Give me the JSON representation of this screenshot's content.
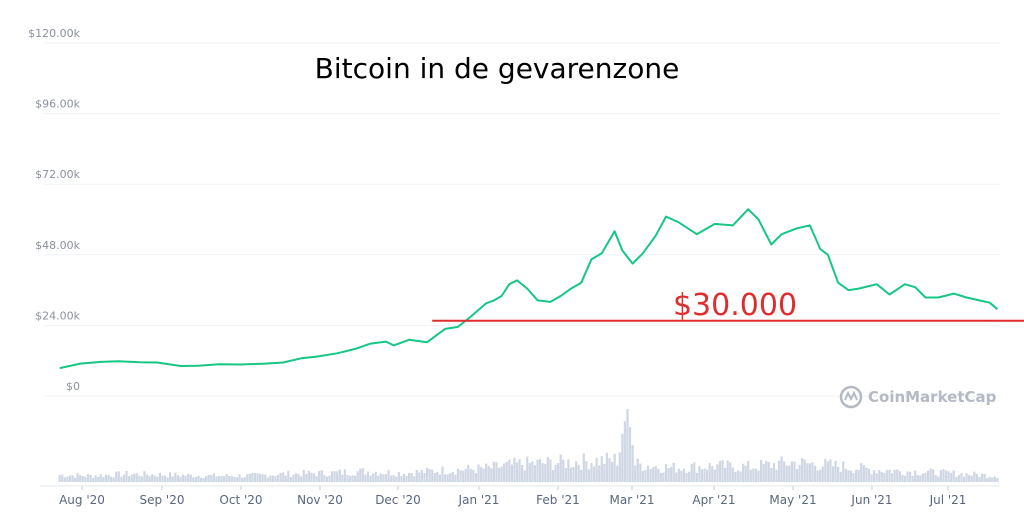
{
  "chart_data": {
    "type": "line",
    "title": "Bitcoin in de gevarenzone",
    "xlabel": "",
    "ylabel": "",
    "ylim": [
      0,
      120000
    ],
    "y_ticks": [
      {
        "value": 0,
        "label": "$0"
      },
      {
        "value": 24000,
        "label": "$24.00k"
      },
      {
        "value": 48000,
        "label": "$48.00k"
      },
      {
        "value": 72000,
        "label": "$72.00k"
      },
      {
        "value": 96000,
        "label": "$96.00k"
      },
      {
        "value": 120000,
        "label": "$120.00k"
      }
    ],
    "x_ticks": [
      "Aug '20",
      "Sep '20",
      "Oct '20",
      "Nov '20",
      "Dec '20",
      "Jan '21",
      "Feb '21",
      "Mar '21",
      "Apr '21",
      "May '21",
      "Jun '21",
      "Jul '21"
    ],
    "grid": true,
    "series": [
      {
        "color": "#16c784",
        "x": [
          "2020-07-20",
          "2020-07-28",
          "2020-08-05",
          "2020-08-12",
          "2020-08-20",
          "2020-08-27",
          "2020-09-05",
          "2020-09-12",
          "2020-09-20",
          "2020-09-28",
          "2020-10-08",
          "2020-10-15",
          "2020-10-22",
          "2020-10-28",
          "2020-11-05",
          "2020-11-12",
          "2020-11-18",
          "2020-11-24",
          "2020-11-27",
          "2020-12-03",
          "2020-12-10",
          "2020-12-17",
          "2020-12-22",
          "2020-12-27",
          "2021-01-02",
          "2021-01-05",
          "2021-01-08",
          "2021-01-11",
          "2021-01-14",
          "2021-01-18",
          "2021-01-22",
          "2021-01-27",
          "2021-01-31",
          "2021-02-04",
          "2021-02-08",
          "2021-02-12",
          "2021-02-16",
          "2021-02-21",
          "2021-02-24",
          "2021-02-28",
          "2021-03-04",
          "2021-03-09",
          "2021-03-13",
          "2021-03-18",
          "2021-03-25",
          "2021-04-01",
          "2021-04-08",
          "2021-04-14",
          "2021-04-18",
          "2021-04-23",
          "2021-04-27",
          "2021-05-03",
          "2021-05-08",
          "2021-05-12",
          "2021-05-15",
          "2021-05-19",
          "2021-05-23",
          "2021-05-27",
          "2021-06-03",
          "2021-06-08",
          "2021-06-14",
          "2021-06-18",
          "2021-06-22",
          "2021-06-27",
          "2021-07-03",
          "2021-07-08",
          "2021-07-13",
          "2021-07-17",
          "2021-07-20"
        ],
        "values": [
          9500,
          11000,
          11600,
          11800,
          11500,
          11400,
          10200,
          10300,
          10800,
          10700,
          11000,
          11400,
          12800,
          13400,
          14500,
          16000,
          17800,
          18500,
          17200,
          19100,
          18300,
          22800,
          23500,
          27000,
          31500,
          32500,
          34000,
          38000,
          39300,
          36500,
          32500,
          32000,
          34000,
          36500,
          38500,
          46500,
          48500,
          56000,
          49500,
          45000,
          48500,
          54500,
          61000,
          59000,
          55000,
          58500,
          58000,
          63500,
          60000,
          51500,
          55000,
          57000,
          58000,
          50000,
          48000,
          38500,
          36000,
          36500,
          38000,
          34500,
          38000,
          37000,
          33500,
          33500,
          34800,
          33500,
          32500,
          31700,
          29500
        ]
      }
    ],
    "volume": {
      "color": "#cfd6e4",
      "x": [
        "2020-07-20",
        "2020-08-01",
        "2020-08-15",
        "2020-09-01",
        "2020-09-15",
        "2020-10-01",
        "2020-10-15",
        "2020-11-01",
        "2020-11-15",
        "2020-12-01",
        "2020-12-15",
        "2021-01-01",
        "2021-01-15",
        "2021-02-01",
        "2021-02-15",
        "2021-02-22",
        "2021-02-26",
        "2021-03-01",
        "2021-03-15",
        "2021-04-01",
        "2021-04-15",
        "2021-05-01",
        "2021-05-15",
        "2021-06-01",
        "2021-06-15",
        "2021-07-01",
        "2021-07-20"
      ],
      "values": [
        8,
        7,
        9,
        8,
        7,
        7,
        9,
        10,
        12,
        10,
        13,
        15,
        20,
        22,
        24,
        25,
        78,
        20,
        16,
        18,
        17,
        22,
        19,
        14,
        12,
        10,
        7
      ]
    },
    "annotation": {
      "label": "$30.000",
      "value": 30000,
      "color": "#e02c2c",
      "x_start": "2020-12-12"
    },
    "watermark": "CoinMarketCap"
  }
}
